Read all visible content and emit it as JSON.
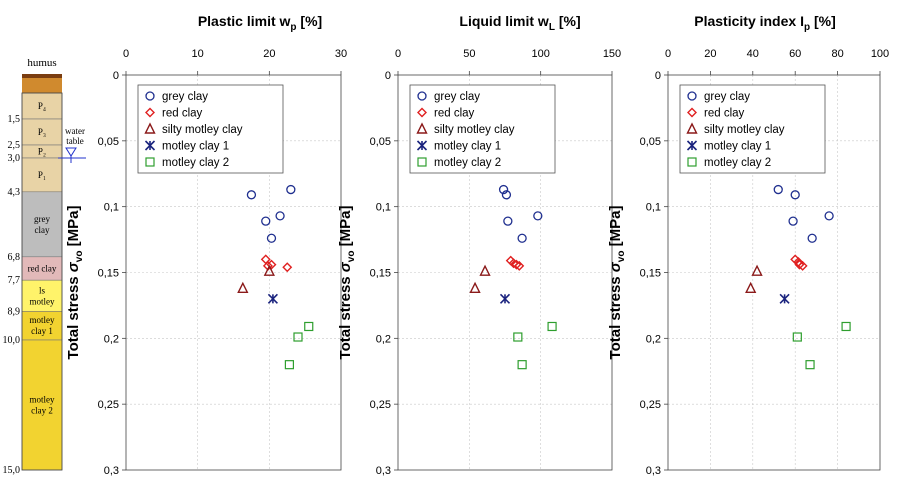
{
  "profile": {
    "humus_label": "humus",
    "water_table_label_1": "water",
    "water_table_label_2": "table",
    "layers": [
      {
        "label": "P₄",
        "top": 0.5,
        "bottom": 1.5,
        "color": "#e8d3a6"
      },
      {
        "label": "P₃",
        "top": 1.5,
        "bottom": 2.5,
        "color": "#e8d3a6"
      },
      {
        "label": "P₂",
        "top": 2.5,
        "bottom": 3.0,
        "color": "#e8d3a6"
      },
      {
        "label": "P₁",
        "top": 3.0,
        "bottom": 4.3,
        "color": "#e8d3a6"
      },
      {
        "label": "grey\nclay",
        "top": 4.3,
        "bottom": 6.8,
        "color": "#bdbdbd"
      },
      {
        "label": "red clay",
        "top": 6.8,
        "bottom": 7.7,
        "color": "#e2b9b9"
      },
      {
        "label": "ls\nmotley",
        "top": 7.7,
        "bottom": 8.9,
        "color": "#fff36a"
      },
      {
        "label": "motley\nclay 1",
        "top": 8.9,
        "bottom": 10.0,
        "color": "#f2d330"
      },
      {
        "label": "motley\nclay 2",
        "top": 10.0,
        "bottom": 15.0,
        "color": "#f2d330"
      }
    ],
    "depth_labels": [
      "1,5",
      "2,5",
      "3,0",
      "4,3",
      "6,8",
      "7,7",
      "8,9",
      "10,0",
      "15,0"
    ],
    "depth_values": [
      1.5,
      2.5,
      3.0,
      4.3,
      6.8,
      7.7,
      8.9,
      10.0,
      15.0
    ],
    "water_table_depth": 3.0
  },
  "colors": {
    "grey": "#1f2f8f",
    "red": "#e02020",
    "silty": "#8b1a1a",
    "motley1": "#1a237e",
    "motley2": "#2e9e2e"
  },
  "chart_data": [
    {
      "type": "scatter",
      "title_main": "Plastic limit w",
      "title_sub": "p",
      "title_unit": " [%]",
      "ylabel_main": "Total stress ",
      "ylabel_sigma": "σ",
      "ylabel_sub": "vo",
      "ylabel_unit": " [MPa]",
      "xlim": [
        0,
        30
      ],
      "xticks": [
        "0",
        "10",
        "20",
        "30"
      ],
      "xtick_values": [
        0,
        10,
        20,
        30
      ],
      "ylim": [
        0,
        0.3
      ],
      "yticks": [
        "0",
        "0,05",
        "0,1",
        "0,15",
        "0,2",
        "0,25",
        "0,3"
      ],
      "ytick_values": [
        0,
        0.05,
        0.1,
        0.15,
        0.2,
        0.25,
        0.3
      ],
      "grid": true,
      "legend_position": "top-left",
      "series": [
        {
          "name": "grey clay",
          "marker": "circle",
          "color": "#1f2f8f",
          "points": [
            [
              23,
              0.087
            ],
            [
              17.5,
              0.091
            ],
            [
              21.5,
              0.107
            ],
            [
              19.5,
              0.111
            ],
            [
              20.3,
              0.124
            ]
          ]
        },
        {
          "name": "red clay",
          "marker": "diamond",
          "color": "#e02020",
          "points": [
            [
              19.5,
              0.14
            ],
            [
              20.3,
              0.144
            ],
            [
              22.5,
              0.146
            ],
            [
              19.8,
              0.145
            ]
          ]
        },
        {
          "name": "silty motley clay",
          "marker": "triangle",
          "color": "#8b1a1a",
          "points": [
            [
              20,
              0.149
            ],
            [
              16.3,
              0.162
            ]
          ]
        },
        {
          "name": "motley clay 1",
          "marker": "star",
          "color": "#1a237e",
          "points": [
            [
              20.5,
              0.17
            ]
          ]
        },
        {
          "name": "motley clay 2",
          "marker": "square",
          "color": "#2e9e2e",
          "points": [
            [
              25.5,
              0.191
            ],
            [
              24,
              0.199
            ],
            [
              22.8,
              0.22
            ]
          ]
        }
      ]
    },
    {
      "type": "scatter",
      "title_main": "Liquid limit w",
      "title_sub": "L",
      "title_unit": " [%]",
      "ylabel_main": "Total stress ",
      "ylabel_sigma": "σ",
      "ylabel_sub": "vo",
      "ylabel_unit": " [MPa]",
      "xlim": [
        0,
        150
      ],
      "xticks": [
        "0",
        "50",
        "100",
        "150"
      ],
      "xtick_values": [
        0,
        50,
        100,
        150
      ],
      "ylim": [
        0,
        0.3
      ],
      "yticks": [
        "0",
        "0,05",
        "0,1",
        "0,15",
        "0,2",
        "0,25",
        "0,3"
      ],
      "ytick_values": [
        0,
        0.05,
        0.1,
        0.15,
        0.2,
        0.25,
        0.3
      ],
      "grid": true,
      "legend_position": "top-left",
      "series": [
        {
          "name": "grey clay",
          "marker": "circle",
          "color": "#1f2f8f",
          "points": [
            [
              74,
              0.087
            ],
            [
              76,
              0.091
            ],
            [
              98,
              0.107
            ],
            [
              77,
              0.111
            ],
            [
              87,
              0.124
            ]
          ]
        },
        {
          "name": "red clay",
          "marker": "diamond",
          "color": "#e02020",
          "points": [
            [
              79,
              0.141
            ],
            [
              81,
              0.143
            ],
            [
              85,
              0.145
            ],
            [
              83,
              0.144
            ]
          ]
        },
        {
          "name": "silty motley clay",
          "marker": "triangle",
          "color": "#8b1a1a",
          "points": [
            [
              61,
              0.149
            ],
            [
              54,
              0.162
            ]
          ]
        },
        {
          "name": "motley clay 1",
          "marker": "star",
          "color": "#1a237e",
          "points": [
            [
              75,
              0.17
            ]
          ]
        },
        {
          "name": "motley clay 2",
          "marker": "square",
          "color": "#2e9e2e",
          "points": [
            [
              108,
              0.191
            ],
            [
              84,
              0.199
            ],
            [
              87,
              0.22
            ]
          ]
        }
      ]
    },
    {
      "type": "scatter",
      "title_main": "Plasticity index I",
      "title_sub": "p",
      "title_unit": " [%]",
      "ylabel_main": "Total stress ",
      "ylabel_sigma": "σ",
      "ylabel_sub": "vo",
      "ylabel_unit": " [MPa]",
      "xlim": [
        0,
        100
      ],
      "xticks": [
        "0",
        "20",
        "40",
        "60",
        "80",
        "100"
      ],
      "xtick_values": [
        0,
        20,
        40,
        60,
        80,
        100
      ],
      "ylim": [
        0,
        0.3
      ],
      "yticks": [
        "0",
        "0,05",
        "0,1",
        "0,15",
        "0,2",
        "0,25",
        "0,3"
      ],
      "ytick_values": [
        0,
        0.05,
        0.1,
        0.15,
        0.2,
        0.25,
        0.3
      ],
      "grid": true,
      "legend_position": "top-left",
      "series": [
        {
          "name": "grey clay",
          "marker": "circle",
          "color": "#1f2f8f",
          "points": [
            [
              52,
              0.087
            ],
            [
              60,
              0.091
            ],
            [
              76,
              0.107
            ],
            [
              59,
              0.111
            ],
            [
              68,
              0.124
            ]
          ]
        },
        {
          "name": "red clay",
          "marker": "diamond",
          "color": "#e02020",
          "points": [
            [
              60,
              0.14
            ],
            [
              61.5,
              0.142
            ],
            [
              63.5,
              0.145
            ],
            [
              62,
              0.144
            ]
          ]
        },
        {
          "name": "silty motley clay",
          "marker": "triangle",
          "color": "#8b1a1a",
          "points": [
            [
              42,
              0.149
            ],
            [
              39,
              0.162
            ]
          ]
        },
        {
          "name": "motley clay 1",
          "marker": "star",
          "color": "#1a237e",
          "points": [
            [
              55,
              0.17
            ]
          ]
        },
        {
          "name": "motley clay 2",
          "marker": "square",
          "color": "#2e9e2e",
          "points": [
            [
              84,
              0.191
            ],
            [
              61,
              0.199
            ],
            [
              67,
              0.22
            ]
          ]
        }
      ]
    }
  ]
}
